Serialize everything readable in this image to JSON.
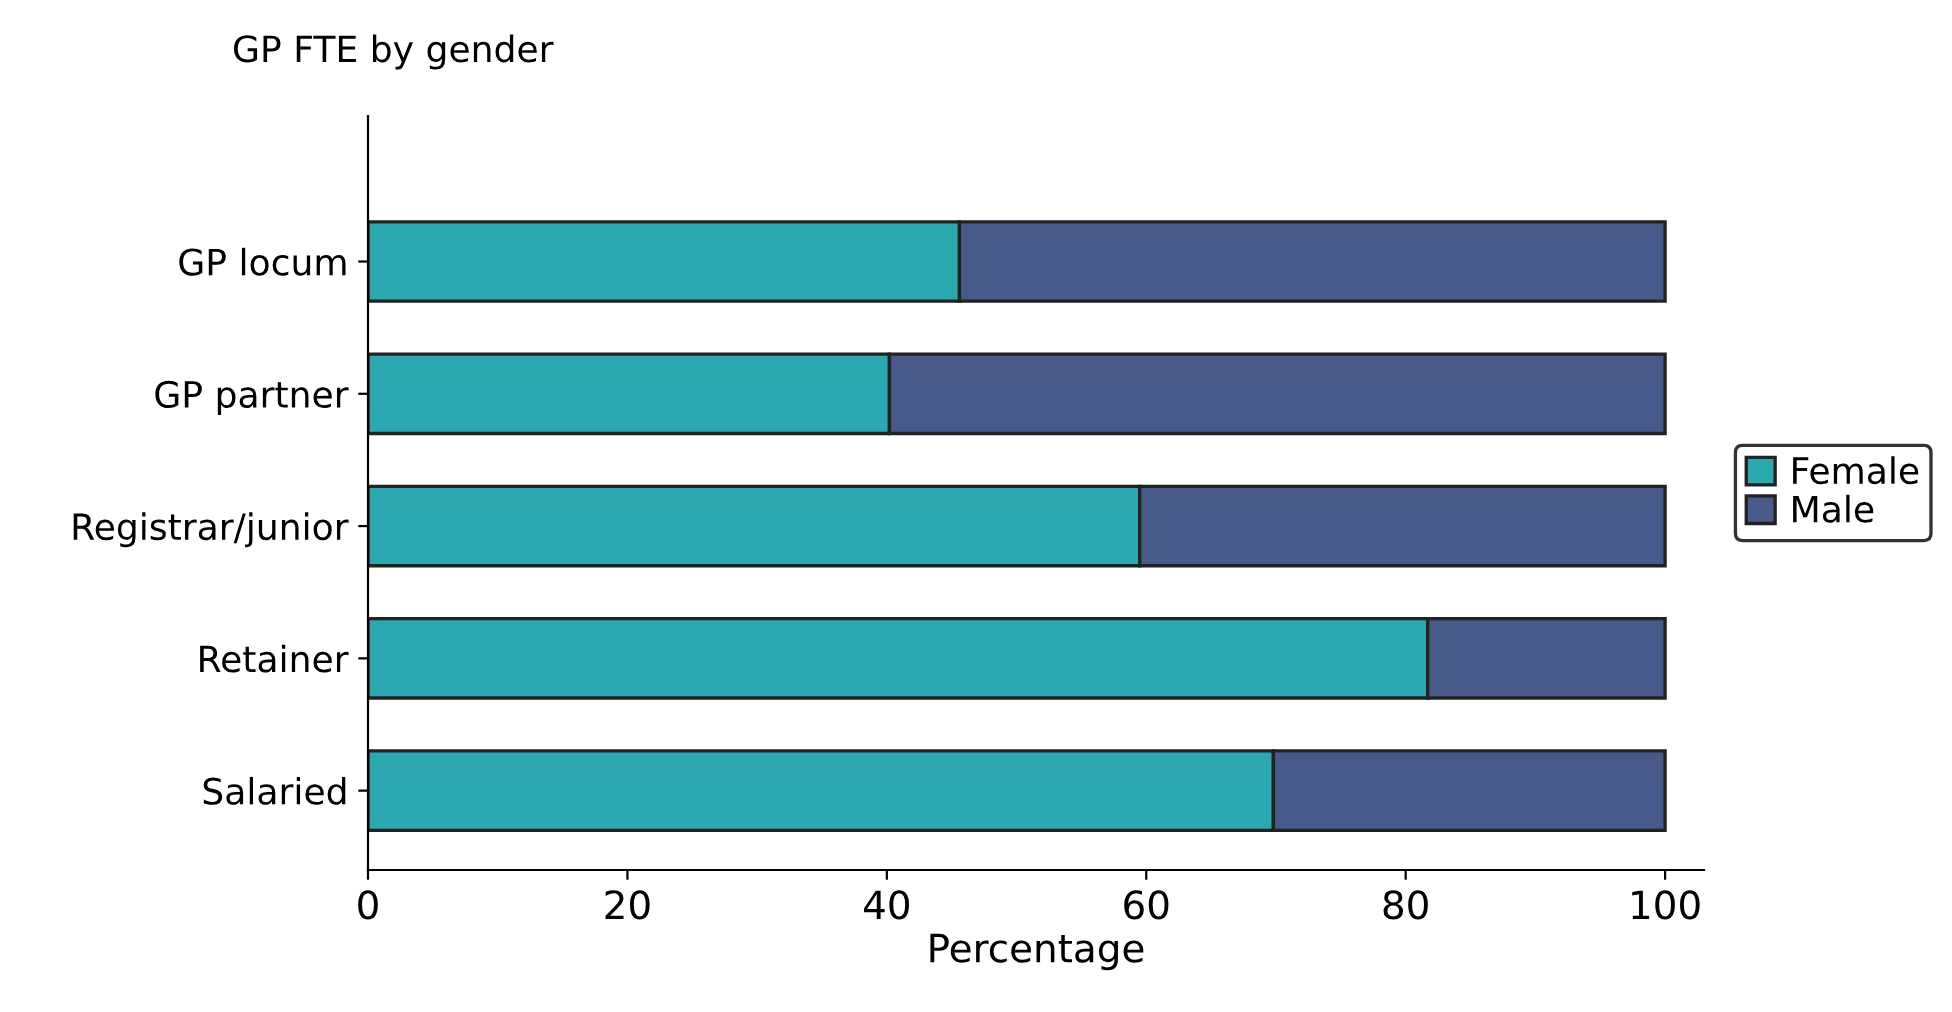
{
  "chart_data": {
    "type": "bar",
    "orientation": "horizontal",
    "stacked": true,
    "title": "GP FTE by gender",
    "xlabel": "Percentage",
    "categories": [
      "GP locum",
      "GP partner",
      "Registrar/junior",
      "Retainer",
      "Salaried"
    ],
    "series": [
      {
        "name": "Female",
        "color": "#2ca8b0",
        "values": [
          45.6,
          40.2,
          59.5,
          81.7,
          69.8
        ]
      },
      {
        "name": "Male",
        "color": "#485a8a",
        "values": [
          54.4,
          59.8,
          40.5,
          18.3,
          30.2
        ]
      }
    ],
    "xlim": [
      0,
      103
    ],
    "xticks": [
      0,
      20,
      40,
      60,
      80,
      100
    ],
    "grid": false,
    "legend": "right"
  }
}
